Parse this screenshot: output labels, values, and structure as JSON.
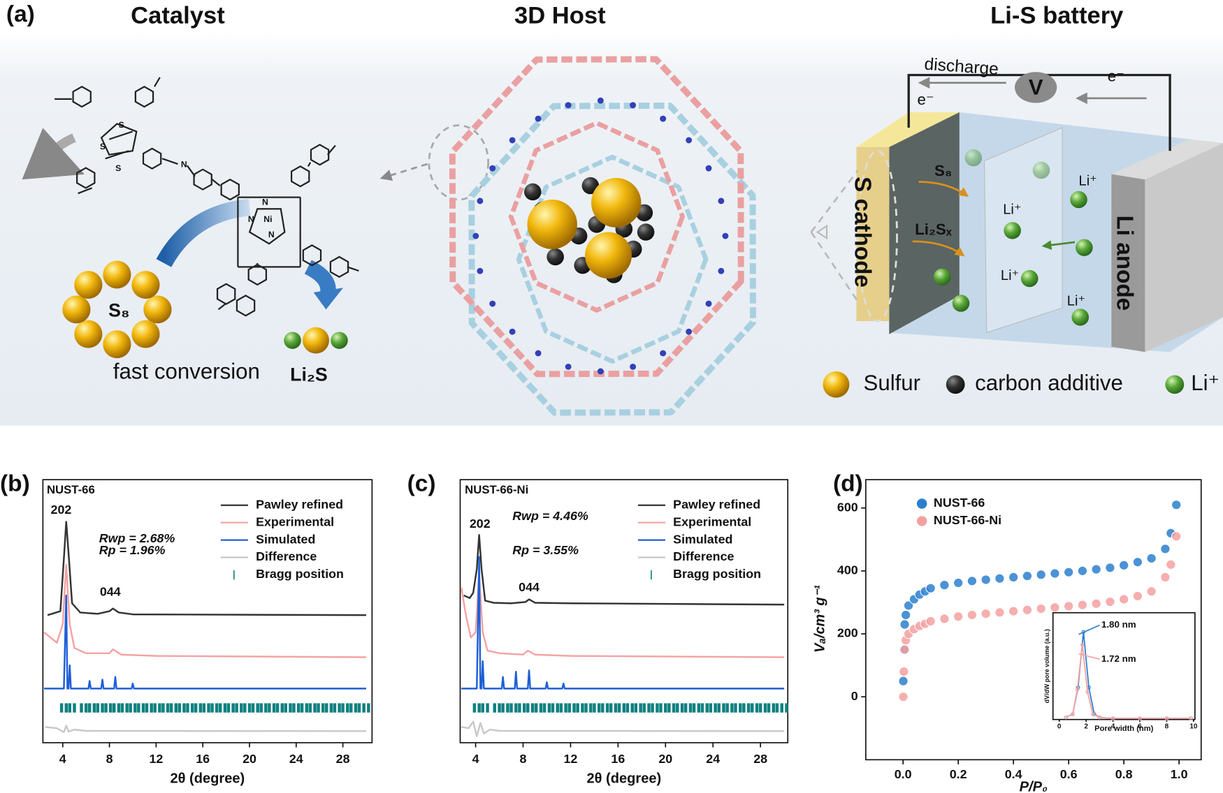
{
  "diagram": {
    "panel_label": "(a)",
    "sections": [
      "Catalyst",
      "3D Host",
      "Li-S battery"
    ],
    "atoms": [
      "S",
      "S",
      "S",
      "N",
      "N",
      "Ni",
      "N",
      "N"
    ],
    "catalyst": {
      "ring": "S₈",
      "caption": "fast conversion",
      "product": "Li₂S"
    },
    "battery": {
      "discharge": "discharge",
      "meter": "V",
      "electrons": [
        "e⁻",
        "e⁻"
      ],
      "cathode": "S cathode",
      "anode": "Li anode",
      "species": [
        "S₈",
        "Li₂Sₓ"
      ],
      "ions": [
        "Li⁺",
        "Li⁺",
        "Li⁺",
        "Li⁺"
      ]
    },
    "legend": [
      "Sulfur",
      "carbon additive",
      "Li⁺"
    ]
  },
  "chart_data": [
    {
      "type": "line",
      "label": "(b)",
      "title": "NUST-66",
      "xlabel": "2θ (degree)",
      "xlim": [
        2.3,
        30.5
      ],
      "ylim": [
        0,
        100
      ],
      "xticks": [
        4,
        8,
        12,
        16,
        20,
        24,
        28
      ],
      "annotations": [
        "202",
        "044",
        "Rwp = 2.68%",
        "Rp = 1.96%"
      ],
      "series": [
        {
          "name": "Pawley refined",
          "color": "#333333",
          "x": [
            2.7,
            3.8,
            4.1,
            4.3,
            4.5,
            4.8,
            5.5,
            7,
            8,
            8.3,
            8.8,
            10,
            30
          ],
          "values": [
            48.5,
            50,
            70,
            84,
            72,
            53,
            49.5,
            49,
            50,
            51,
            49.5,
            48.8,
            48.5
          ]
        },
        {
          "name": "Experimental",
          "color": "#f4a3a3",
          "x": [
            2.4,
            3.5,
            4.0,
            4.3,
            4.6,
            5,
            6,
            8,
            8.3,
            9,
            12,
            30
          ],
          "values": [
            42,
            38,
            45,
            67.6,
            45,
            36,
            34,
            34,
            35.5,
            33.5,
            33,
            32.5
          ]
        },
        {
          "name": "Simulated",
          "color": "#1f5fd6",
          "x": [
            2.4,
            4.1,
            4.3,
            4.4,
            4.5,
            4.6,
            4.7,
            6.2,
            6.3,
            6.4,
            7.3,
            7.4,
            7.5,
            8.4,
            8.5,
            8.6,
            9.9,
            10,
            10.1,
            30
          ],
          "values": [
            20.6,
            20.6,
            56,
            20.6,
            20.6,
            29.4,
            20.6,
            20.6,
            23.5,
            20.6,
            20.6,
            24,
            20.6,
            20.6,
            25,
            20.6,
            20.6,
            22.5,
            20.6,
            20.6
          ]
        },
        {
          "name": "Difference",
          "color": "#c8c8c8",
          "x": [
            2.5,
            3.5,
            4.1,
            4.3,
            4.5,
            5,
            6,
            30
          ],
          "values": [
            6,
            5.5,
            4,
            6.5,
            4.2,
            5,
            4.5,
            4.4
          ]
        },
        {
          "name": "Bragg position",
          "color": "#118080",
          "x": [
            3.9,
            4.3,
            4.6,
            5.0,
            5.6,
            6.0,
            6.3,
            6.7,
            7.0,
            7.4,
            7.7,
            8.1,
            8.4,
            8.8,
            9.1,
            9.5,
            9.8,
            10.2,
            10.5,
            10.9,
            11.2,
            11.6,
            11.9,
            12.3,
            12.6,
            13.0,
            13.3,
            13.7,
            14.0,
            14.4,
            14.7,
            15.1,
            15.4,
            15.8,
            16.1,
            16.5,
            16.8,
            17.2,
            17.5,
            17.9,
            18.2,
            18.6,
            18.9,
            19.3,
            19.6,
            20.0,
            20.3,
            20.7,
            21.0,
            21.4,
            21.7,
            22.1,
            22.4,
            22.8,
            23.1,
            23.5,
            23.8,
            24.2,
            24.5,
            24.9,
            25.2,
            25.6,
            25.9,
            26.3,
            26.6,
            27.0,
            27.3,
            27.7,
            28.0,
            28.4,
            28.7,
            29.1,
            29.4,
            29.8,
            30.2
          ]
        }
      ]
    },
    {
      "type": "line",
      "label": "(c)",
      "title": "NUST-66-Ni",
      "xlabel": "2θ (degree)",
      "xlim": [
        2.7,
        30.3
      ],
      "ylim": [
        0,
        100
      ],
      "xticks": [
        4,
        8,
        12,
        16,
        20,
        24,
        28
      ],
      "annotations": [
        "202",
        "044",
        "Rwp = 4.46%",
        "Rp = 3.55%"
      ],
      "series": [
        {
          "name": "Pawley refined",
          "color": "#333333",
          "x": [
            3.0,
            3.5,
            3.8,
            4.1,
            4.3,
            4.5,
            4.8,
            5.5,
            7,
            8.2,
            8.5,
            9,
            12,
            30
          ],
          "values": [
            56,
            55,
            57,
            66,
            79,
            66,
            54,
            53.2,
            53,
            53.5,
            54.5,
            53.2,
            53,
            52.5
          ]
        },
        {
          "name": "Experimental",
          "color": "#f4a3a3",
          "x": [
            2.8,
            3.2,
            3.6,
            4.0,
            4.3,
            4.6,
            5,
            6,
            8,
            8.4,
            9,
            12,
            30
          ],
          "values": [
            59,
            48,
            40,
            42,
            64,
            42,
            35,
            34,
            33.5,
            35,
            33.5,
            33,
            32.5
          ]
        },
        {
          "name": "Simulated",
          "color": "#1f5fd6",
          "x": [
            2.8,
            4.1,
            4.3,
            4.4,
            4.5,
            4.6,
            4.7,
            6.2,
            6.3,
            6.4,
            7.3,
            7.4,
            7.5,
            8.4,
            8.5,
            8.6,
            9.9,
            10,
            10.1,
            11.3,
            11.4,
            11.5,
            30
          ],
          "values": [
            20.6,
            20.6,
            70.6,
            20.6,
            20.6,
            31,
            20.6,
            20.6,
            25,
            20.6,
            20.6,
            27,
            20.6,
            20.6,
            27.5,
            20.6,
            20.6,
            23,
            20.6,
            20.6,
            22.5,
            20.6,
            20.6
          ]
        },
        {
          "name": "Difference",
          "color": "#c8c8c8",
          "x": [
            2.8,
            3.4,
            3.8,
            4.1,
            4.4,
            4.7,
            5.2,
            6,
            30
          ],
          "values": [
            6,
            5.5,
            8,
            2.5,
            7.5,
            3.5,
            5,
            4.5,
            4.4
          ]
        },
        {
          "name": "Bragg position",
          "color": "#118080",
          "x": [
            3.9,
            4.3,
            4.6,
            5.0,
            5.6,
            6.0,
            6.3,
            6.7,
            7.0,
            7.4,
            7.7,
            8.1,
            8.4,
            8.8,
            9.1,
            9.5,
            9.8,
            10.2,
            10.5,
            10.9,
            11.2,
            11.6,
            11.9,
            12.3,
            12.6,
            13.0,
            13.3,
            13.7,
            14.0,
            14.4,
            14.7,
            15.1,
            15.4,
            15.8,
            16.1,
            16.5,
            16.8,
            17.2,
            17.5,
            17.9,
            18.2,
            18.6,
            18.9,
            19.3,
            19.6,
            20.0,
            20.3,
            20.7,
            21.0,
            21.4,
            21.7,
            22.1,
            22.4,
            22.8,
            23.1,
            23.5,
            23.8,
            24.2,
            24.5,
            24.9,
            25.2,
            25.6,
            25.9,
            26.3,
            26.6,
            27.0,
            27.3,
            27.7,
            28.0,
            28.4,
            28.7,
            29.1,
            29.4,
            29.8,
            30.2
          ]
        }
      ]
    },
    {
      "type": "scatter",
      "label": "(d)",
      "xlabel": "P/P₀",
      "ylabel": "Vₐ/cm³ g⁻¹",
      "xlim": [
        -0.135,
        1.08
      ],
      "ylim": [
        -200,
        690
      ],
      "xticks": [
        {
          "value": 0,
          "label": "0.0"
        },
        0.2,
        0.4,
        0.6,
        0.8,
        {
          "value": 1,
          "label": "1.0"
        }
      ],
      "yticks": [
        0,
        200,
        400,
        600
      ],
      "series": [
        {
          "name": "NUST-66",
          "color": "#2b7fcf",
          "x": [
            0.001,
            0.003,
            0.006,
            0.01,
            0.02,
            0.04,
            0.06,
            0.08,
            0.1,
            0.15,
            0.2,
            0.25,
            0.3,
            0.35,
            0.4,
            0.45,
            0.5,
            0.55,
            0.6,
            0.65,
            0.7,
            0.75,
            0.8,
            0.85,
            0.9,
            0.95,
            0.97,
            0.99
          ],
          "values": [
            50,
            150,
            230,
            260,
            290,
            310,
            325,
            335,
            345,
            355,
            362,
            368,
            372,
            376,
            380,
            384,
            388,
            392,
            396,
            400,
            405,
            410,
            418,
            428,
            440,
            470,
            520,
            610
          ]
        },
        {
          "name": "NUST-66-Ni",
          "color": "#f4a0a0",
          "x": [
            0.001,
            0.003,
            0.006,
            0.01,
            0.02,
            0.04,
            0.06,
            0.08,
            0.1,
            0.15,
            0.2,
            0.25,
            0.3,
            0.35,
            0.4,
            0.45,
            0.5,
            0.55,
            0.6,
            0.65,
            0.7,
            0.75,
            0.8,
            0.85,
            0.9,
            0.95,
            0.97,
            0.99
          ],
          "values": [
            0,
            80,
            150,
            180,
            200,
            215,
            225,
            232,
            240,
            248,
            255,
            260,
            264,
            268,
            272,
            276,
            280,
            284,
            288,
            292,
            296,
            302,
            310,
            320,
            335,
            380,
            420,
            510
          ]
        }
      ]
    },
    {
      "type": "line",
      "xlabel": "Pore width (nm)",
      "ylabel": "dV/dW pore volume (a.u.)",
      "xlim": [
        -0.47,
        10.1
      ],
      "ylim": [
        0,
        1
      ],
      "xticks": [
        0,
        2,
        4,
        6,
        8,
        10
      ],
      "annotations": [
        "1.80 nm",
        "1.72 nm"
      ],
      "series": [
        {
          "color": "#2b7fcf",
          "x": [
            0.5,
            1,
            1.4,
            1.8,
            2.2,
            2.6,
            3,
            4,
            6,
            8,
            9.8
          ],
          "values": [
            0.02,
            0.05,
            0.3,
            0.82,
            0.3,
            0.05,
            0.02,
            0.01,
            0.01,
            0.01,
            0.01
          ]
        },
        {
          "color": "#f4a0a0",
          "x": [
            0.5,
            1,
            1.35,
            1.72,
            2.1,
            2.5,
            3,
            4,
            6,
            8,
            9.8
          ],
          "values": [
            0.02,
            0.05,
            0.28,
            0.7,
            0.26,
            0.05,
            0.02,
            0.01,
            0.01,
            0.01,
            0.01
          ]
        }
      ]
    }
  ]
}
